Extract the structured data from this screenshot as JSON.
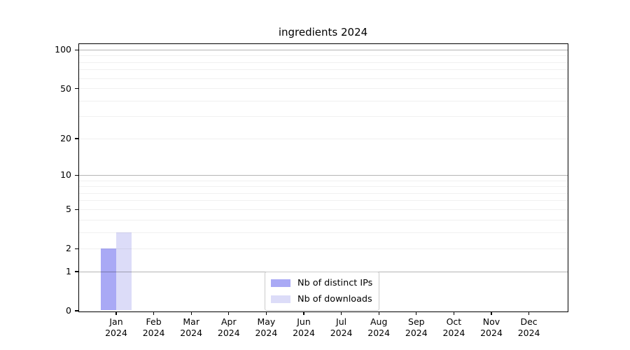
{
  "chart_data": {
    "type": "bar",
    "title": "ingredients 2024",
    "categories": [
      "Jan",
      "Feb",
      "Mar",
      "Apr",
      "May",
      "Jun",
      "Jul",
      "Aug",
      "Sep",
      "Oct",
      "Nov",
      "Dec"
    ],
    "year_label": "2024",
    "series": [
      {
        "name": "Nb of distinct IPs",
        "color": "#a9a9f5",
        "values": [
          2,
          0,
          0,
          0,
          0,
          0,
          0,
          0,
          0,
          0,
          0,
          0
        ]
      },
      {
        "name": "Nb of downloads",
        "color": "#dcdcf8",
        "values": [
          3,
          0,
          0,
          0,
          0,
          0,
          0,
          0,
          0,
          0,
          0,
          0
        ]
      }
    ],
    "yscale": "log1p",
    "ylim": [
      0,
      111
    ],
    "y_ticks": [
      0,
      1,
      2,
      5,
      10,
      20,
      50,
      100
    ],
    "y_major_gridlines": [
      1,
      10,
      100
    ],
    "y_minor_gridlines": [
      2,
      3,
      4,
      5,
      6,
      7,
      8,
      9,
      20,
      30,
      40,
      50,
      60,
      70,
      80,
      90
    ],
    "grid": "horizontal",
    "legend_position": "lower center",
    "colors": {
      "axis": "#000000",
      "text": "#000000",
      "major_grid": "rgba(0,0,0,0.29)",
      "minor_grid": "rgba(0,0,0,0.06)",
      "background": "#ffffff"
    }
  }
}
